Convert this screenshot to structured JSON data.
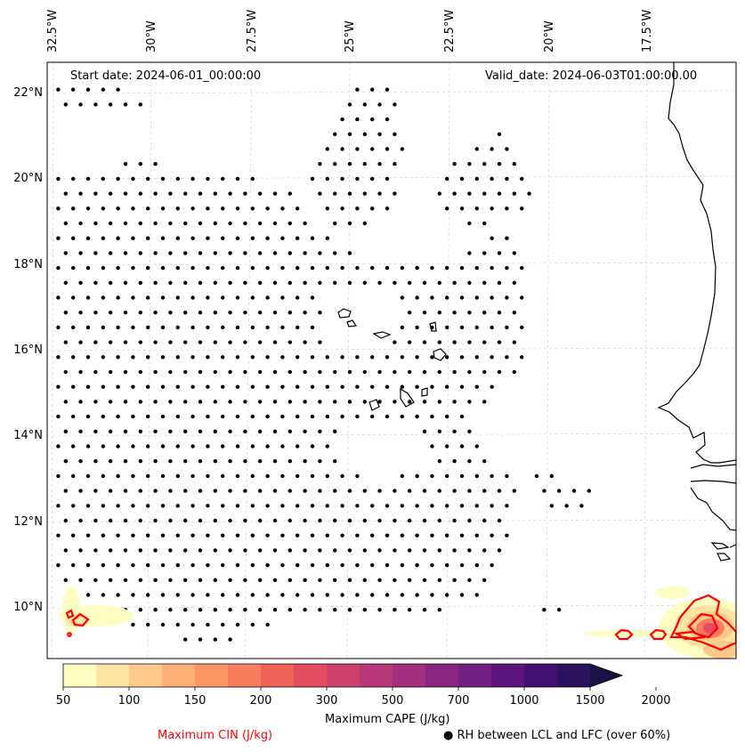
{
  "map": {
    "start_date_label": "Start date: 2024-06-01_00:00:00",
    "valid_date_label": "Valid_date: 2024-06-03T01:00:00.00",
    "lon_labels": [
      "32.5°W",
      "30°W",
      "27.5°W",
      "25°W",
      "22.5°W",
      "20°W",
      "17.5°W"
    ],
    "lat_labels": [
      "22°N",
      "20°N",
      "18°N",
      "16°N",
      "14°N",
      "12°N",
      "10°N"
    ],
    "colorbar": {
      "title": "Maximum CAPE (J/kg)",
      "tick_labels": [
        "50",
        "100",
        "150",
        "200",
        "300",
        "500",
        "700",
        "1000",
        "1500",
        "2000"
      ],
      "colors": [
        "#fffec2",
        "#fee3a2",
        "#fec98a",
        "#feb076",
        "#fd9766",
        "#f97c5c",
        "#f06359",
        "#e24e60",
        "#cd416c",
        "#b73779",
        "#a12e7f",
        "#8a2681",
        "#731f81",
        "#5b157d",
        "#420f73",
        "#2b115e",
        "#1b1244"
      ]
    },
    "legend": {
      "cin_label": "Maximum CIN (J/kg)",
      "cin_color": "#ff0000",
      "rh_label": "● RH between LCL and LFC (over 60%)"
    }
  }
}
